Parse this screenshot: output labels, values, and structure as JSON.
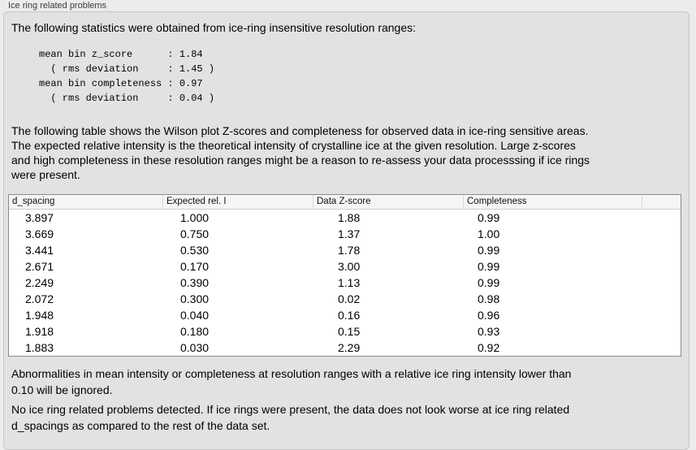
{
  "panel": {
    "title": "Ice ring related problems"
  },
  "intro": "The following statistics were obtained from ice-ring insensitive resolution ranges:",
  "stats": {
    "lines": [
      "mean bin z_score      : 1.84",
      "  ( rms deviation     : 1.45 )",
      "mean bin completeness : 0.97",
      "  ( rms deviation     : 0.04 )"
    ]
  },
  "description": {
    "lines": [
      "The following table shows the Wilson plot Z-scores and completeness for observed data in ice-ring sensitive areas.",
      "The expected relative intensity is the theoretical intensity of crystalline ice at the given resolution. Large z-scores",
      "and high completeness in these resolution ranges might be a reason to re-assess your data processsing if ice rings",
      "were present."
    ]
  },
  "table": {
    "headers": [
      "d_spacing",
      "Expected rel. I",
      "Data Z-score",
      "Completeness"
    ],
    "rows": [
      [
        "3.897",
        "1.000",
        "1.88",
        "0.99"
      ],
      [
        "3.669",
        "0.750",
        "1.37",
        "1.00"
      ],
      [
        "3.441",
        "0.530",
        "1.78",
        "0.99"
      ],
      [
        "2.671",
        "0.170",
        "3.00",
        "0.99"
      ],
      [
        "2.249",
        "0.390",
        "1.13",
        "0.99"
      ],
      [
        "2.072",
        "0.300",
        "0.02",
        "0.98"
      ],
      [
        "1.948",
        "0.040",
        "0.16",
        "0.96"
      ],
      [
        "1.918",
        "0.180",
        "0.15",
        "0.93"
      ],
      [
        "1.883",
        "0.030",
        "2.29",
        "0.92"
      ]
    ]
  },
  "notes": {
    "note1_lines": [
      "Abnormalities in mean intensity or completeness at resolution ranges with a relative ice ring intensity lower than",
      "0.10 will be ignored."
    ],
    "note2_lines": [
      "No ice ring related problems detected. If ice rings were present, the data does not look worse at ice ring related",
      "d_spacings as compared to the rest of the data set."
    ]
  },
  "colors": {
    "outer_bg": "#ececec",
    "panel_bg": "#e2e2e2",
    "table_bg": "#ffffff",
    "table_header_bg": "#f5f5f5",
    "table_border": "#8b8b8b"
  }
}
